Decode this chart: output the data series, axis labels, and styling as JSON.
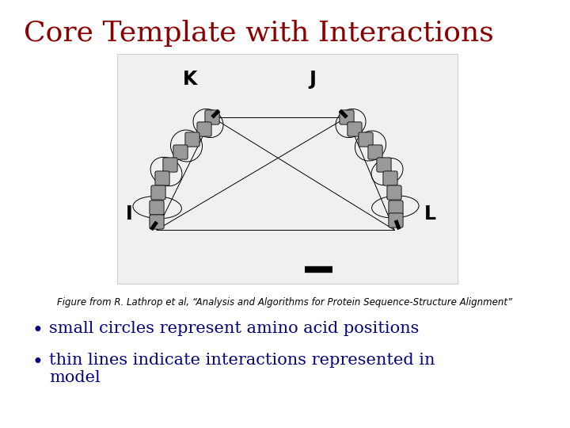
{
  "title": "Core Template with Interactions",
  "title_color": "#8B0000",
  "title_fontsize": 26,
  "caption": "Figure from R. Lathrop et al, “Analysis and Algorithms for Protein Sequence-Structure Alignment”",
  "caption_fontsize": 8.5,
  "bullet1": "small circles represent amino acid positions",
  "bullet2": "thin lines indicate interactions represented in\nmodel",
  "bullet_fontsize": 15,
  "bullet_color": "#000080",
  "node_color": "#999999",
  "bg_color": "#ffffff",
  "fig_bg": "#f5f5f5"
}
